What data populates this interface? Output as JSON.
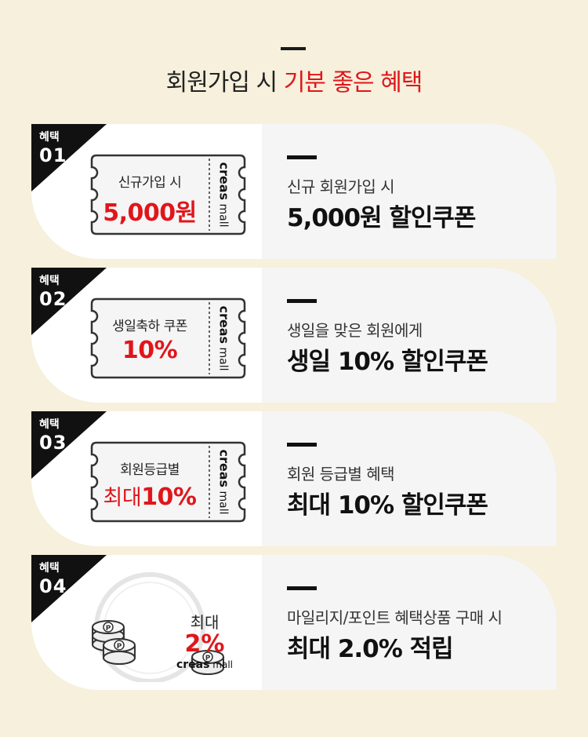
{
  "header": {
    "title_plain": "회원가입 시",
    "title_highlight": "기분 좋은 혜택"
  },
  "colors": {
    "accent": "#e0161b",
    "background": "#f6f0dc",
    "dark": "#111111"
  },
  "benefits": [
    {
      "badge_label": "혜택",
      "badge_number": "01",
      "coupon_line1": "신규가입 시",
      "coupon_line2": "5,000원",
      "brand_bold": "creas",
      "brand_light": "mall",
      "desc_line1": "신규 회원가입 시",
      "desc_line2": "5,000원 할인쿠폰"
    },
    {
      "badge_label": "혜택",
      "badge_number": "02",
      "coupon_line1": "생일축하 쿠폰",
      "coupon_line2": "10%",
      "brand_bold": "creas",
      "brand_light": "mall",
      "desc_line1": "생일을 맞은 회원에게",
      "desc_line2": "생일 10% 할인쿠폰"
    },
    {
      "badge_label": "혜택",
      "badge_number": "03",
      "coupon_line1": "회원등급별",
      "coupon_line2_prefix": "최대",
      "coupon_line2": "10%",
      "brand_bold": "creas",
      "brand_light": "mall",
      "desc_line1": "회원 등급별 혜택",
      "desc_line2": "최대 10% 할인쿠폰"
    },
    {
      "badge_label": "혜택",
      "badge_number": "04",
      "coupon_line1": "최대",
      "coupon_line2": "2%",
      "brand_bold": "creas",
      "brand_light": "mall",
      "coin_symbol": "P",
      "desc_line1": "마일리지/포인트 혜택상품 구매 시",
      "desc_line2": "최대 2.0% 적립"
    }
  ]
}
